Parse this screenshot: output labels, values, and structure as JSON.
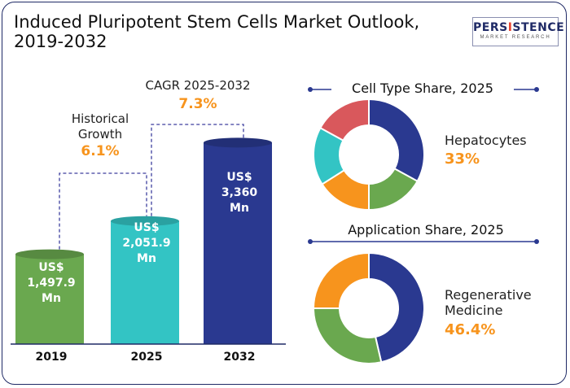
{
  "title_line1": "Induced Pluripotent Stem Cells Market Outlook,",
  "title_line2": "2019-2032",
  "logo": {
    "main_pre": "PERS",
    "main_accent": "I",
    "main_post": "STENCE",
    "sub": "MARKET RESEARCH"
  },
  "colors": {
    "green": "#6aa84f",
    "teal": "#33c4c4",
    "navy": "#2a3990",
    "orange": "#f7941d",
    "red": "#d9585c",
    "dash": "#3d3f9e"
  },
  "annotations": {
    "historical_label_1": "Historical",
    "historical_label_2": "Growth",
    "historical_value": "6.1%",
    "cagr_label": "CAGR 2025-2032",
    "cagr_value": "7.3%"
  },
  "chart_data": [
    {
      "type": "bar",
      "categories": [
        "2019",
        "2025",
        "2032"
      ],
      "values": [
        1497.9,
        2051.9,
        3360
      ],
      "value_labels": [
        [
          "US$",
          "1,497.9",
          "Mn"
        ],
        [
          "US$",
          "2,051.9",
          "Mn"
        ],
        [
          "US$",
          "3,360",
          "Mn"
        ]
      ],
      "colors": [
        "#6aa84f",
        "#33c4c4",
        "#2a3990"
      ]
    },
    {
      "type": "pie",
      "title": "Cell Type Share, 2025",
      "highlight_label": "Hepatocytes",
      "highlight_value": "33%",
      "slices": [
        {
          "value": 33,
          "color": "#2a3990"
        },
        {
          "value": 17,
          "color": "#6aa84f"
        },
        {
          "value": 16,
          "color": "#f7941d"
        },
        {
          "value": 17,
          "color": "#33c4c4"
        },
        {
          "value": 17,
          "color": "#d9585c"
        }
      ]
    },
    {
      "type": "pie",
      "title": "Application Share, 2025",
      "highlight_label_1": "Regenerative",
      "highlight_label_2": "Medicine",
      "highlight_value": "46.4%",
      "slices": [
        {
          "value": 46.4,
          "color": "#2a3990"
        },
        {
          "value": 28.6,
          "color": "#6aa84f"
        },
        {
          "value": 25.0,
          "color": "#f7941d"
        }
      ]
    }
  ]
}
